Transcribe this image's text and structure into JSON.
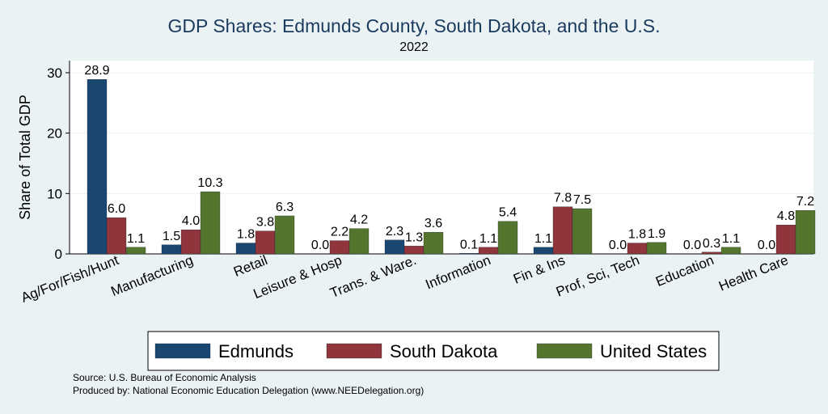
{
  "chart_data": {
    "type": "bar",
    "title": "GDP Shares: Edmunds County, South Dakota, and the U.S.",
    "subtitle": "2022",
    "ylabel": "Share of Total GDP",
    "xlabel": "",
    "ylim": [
      0,
      32
    ],
    "yticks": [
      0,
      10,
      20,
      30
    ],
    "grid": true,
    "legend_position": "bottom",
    "categories": [
      "Ag/For/Fish/Hunt",
      "Manufacturing",
      "Retail",
      "Leisure & Hosp",
      "Trans. & Ware.",
      "Information",
      "Fin & Ins",
      "Prof, Sci, Tech",
      "Education",
      "Health Care"
    ],
    "series": [
      {
        "name": "Edmunds",
        "color": "#1a476f",
        "values": [
          28.9,
          1.5,
          1.8,
          0.0,
          2.3,
          0.1,
          1.1,
          0.0,
          0.0,
          0.0
        ]
      },
      {
        "name": "South Dakota",
        "color": "#90353b",
        "values": [
          6.0,
          4.0,
          3.8,
          2.2,
          1.3,
          1.1,
          7.8,
          1.8,
          0.3,
          4.8
        ]
      },
      {
        "name": "United States",
        "color": "#55752f",
        "values": [
          1.1,
          10.3,
          6.3,
          4.2,
          3.6,
          5.4,
          7.5,
          1.9,
          1.1,
          7.2
        ]
      }
    ]
  },
  "notes": {
    "source": "Source: U.S. Bureau of Economic Analysis",
    "produced": "Produced by: National Economic Education Delegation (www.NEEDelegation.org)"
  }
}
